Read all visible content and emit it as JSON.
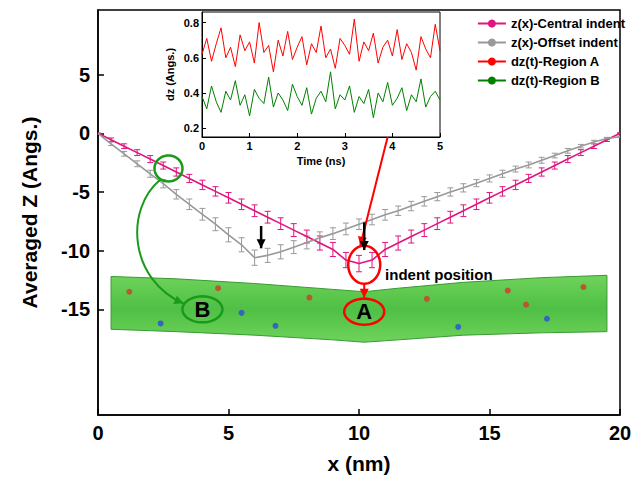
{
  "chart_data": [
    {
      "type": "line",
      "x_label": "x (nm)",
      "y_label": "Averaged Z (Angs.)",
      "xlim": [
        0,
        20
      ],
      "xticks": [
        0,
        5,
        10,
        15,
        20
      ],
      "ylim": [
        -24,
        10.5
      ],
      "yticks": [
        -15,
        -10,
        -5,
        0,
        5
      ],
      "grid": false,
      "legend": "upper right",
      "annotations": [
        "indent position",
        "A",
        "B"
      ],
      "x": [
        0,
        0.5,
        1,
        1.5,
        2,
        2.5,
        3,
        3.5,
        4,
        4.5,
        5,
        5.5,
        6,
        6.5,
        7,
        7.5,
        8,
        8.5,
        9,
        9.5,
        10,
        10.5,
        11,
        11.5,
        12,
        12.5,
        13,
        13.5,
        14,
        14.5,
        15,
        15.5,
        16,
        16.5,
        17,
        17.5,
        18,
        18.5,
        19,
        19.5,
        20
      ],
      "series": [
        {
          "name": "z(x)-Central indent",
          "color": "#e0157f",
          "line_style": "solid",
          "values": [
            0,
            -0.55,
            -1.1,
            -1.65,
            -2.2,
            -2.75,
            -3.3,
            -3.85,
            -4.4,
            -4.95,
            -5.5,
            -6.05,
            -6.6,
            -7.15,
            -7.7,
            -8.25,
            -8.8,
            -9.35,
            -9.9,
            -10.8,
            -11.1,
            -10.8,
            -9.9,
            -9.35,
            -8.8,
            -8.25,
            -7.7,
            -7.15,
            -6.6,
            -6.05,
            -5.5,
            -4.95,
            -4.4,
            -3.85,
            -3.3,
            -2.75,
            -2.2,
            -1.65,
            -1.1,
            -0.55,
            0
          ],
          "errors": [
            0,
            0.15,
            0.2,
            0.25,
            0.3,
            0.3,
            0.35,
            0.35,
            0.4,
            0.4,
            0.45,
            0.45,
            0.5,
            0.5,
            0.5,
            0.55,
            0.55,
            0.6,
            0.6,
            0.65,
            0.7,
            0.65,
            0.6,
            0.6,
            0.55,
            0.55,
            0.5,
            0.5,
            0.5,
            0.45,
            0.45,
            0.4,
            0.4,
            0.35,
            0.35,
            0.3,
            0.3,
            0.25,
            0.2,
            0.15,
            0.05
          ]
        },
        {
          "name": "z(x)-Offset indent",
          "color": "#999999",
          "line_style": "solid",
          "values": [
            0,
            -0.9,
            -1.75,
            -2.6,
            -3.45,
            -4.3,
            -5.2,
            -6.05,
            -6.9,
            -7.75,
            -8.65,
            -9.5,
            -10.6,
            -10.4,
            -10.1,
            -9.7,
            -9.3,
            -8.9,
            -8.55,
            -8.15,
            -7.75,
            -7.35,
            -6.95,
            -6.6,
            -6.2,
            -5.8,
            -5.4,
            -5.0,
            -4.65,
            -4.25,
            -3.85,
            -3.45,
            -3.05,
            -2.7,
            -2.3,
            -1.9,
            -1.5,
            -1.1,
            -0.75,
            -0.45,
            -0.3
          ],
          "errors": [
            0,
            0.15,
            0.2,
            0.25,
            0.3,
            0.35,
            0.4,
            0.45,
            0.5,
            0.55,
            0.6,
            0.6,
            0.65,
            0.6,
            0.6,
            0.55,
            0.55,
            0.5,
            0.5,
            0.5,
            0.45,
            0.45,
            0.45,
            0.4,
            0.4,
            0.4,
            0.35,
            0.35,
            0.35,
            0.3,
            0.3,
            0.3,
            0.25,
            0.25,
            0.25,
            0.2,
            0.2,
            0.15,
            0.15,
            0.1,
            0.05
          ]
        }
      ]
    },
    {
      "type": "line",
      "x_label": "Time (ns)",
      "y_label": "dz (Angs.)",
      "xlim": [
        0,
        5
      ],
      "xticks": [
        0,
        1,
        2,
        3,
        4,
        5
      ],
      "ylim": [
        0.15,
        0.86
      ],
      "yticks": [
        0.2,
        0.4,
        0.6,
        0.8
      ],
      "grid": false,
      "x": [
        0,
        0.1,
        0.2,
        0.3,
        0.4,
        0.5,
        0.6,
        0.7,
        0.8,
        0.9,
        1,
        1.1,
        1.2,
        1.3,
        1.4,
        1.5,
        1.6,
        1.7,
        1.8,
        1.9,
        2,
        2.1,
        2.2,
        2.3,
        2.4,
        2.5,
        2.6,
        2.7,
        2.8,
        2.9,
        3,
        3.1,
        3.2,
        3.3,
        3.4,
        3.5,
        3.6,
        3.7,
        3.8,
        3.9,
        4,
        4.1,
        4.2,
        4.3,
        4.4,
        4.5,
        4.6,
        4.7,
        4.8,
        4.9,
        5
      ],
      "series": [
        {
          "name": "dz(t)-Region A",
          "color": "#ff0000",
          "line_style": "solid",
          "values": [
            0.62,
            0.71,
            0.58,
            0.68,
            0.77,
            0.6,
            0.66,
            0.55,
            0.73,
            0.64,
            0.69,
            0.57,
            0.8,
            0.63,
            0.67,
            0.52,
            0.7,
            0.61,
            0.75,
            0.59,
            0.66,
            0.72,
            0.56,
            0.68,
            0.63,
            0.78,
            0.6,
            0.65,
            0.54,
            0.71,
            0.67,
            0.62,
            0.82,
            0.58,
            0.69,
            0.64,
            0.74,
            0.57,
            0.66,
            0.7,
            0.61,
            0.76,
            0.59,
            0.68,
            0.63,
            0.53,
            0.72,
            0.65,
            0.6,
            0.79,
            0.64
          ]
        },
        {
          "name": "dz(t)-Region B",
          "color": "#008000",
          "line_style": "solid",
          "values": [
            0.38,
            0.31,
            0.44,
            0.35,
            0.29,
            0.41,
            0.36,
            0.47,
            0.33,
            0.39,
            0.27,
            0.42,
            0.37,
            0.34,
            0.49,
            0.32,
            0.4,
            0.36,
            0.3,
            0.45,
            0.38,
            0.33,
            0.43,
            0.28,
            0.37,
            0.41,
            0.35,
            0.52,
            0.31,
            0.39,
            0.36,
            0.44,
            0.29,
            0.38,
            0.34,
            0.42,
            0.26,
            0.4,
            0.35,
            0.46,
            0.33,
            0.37,
            0.43,
            0.3,
            0.39,
            0.35,
            0.48,
            0.32,
            0.38,
            0.41,
            0.36
          ]
        }
      ]
    }
  ]
}
